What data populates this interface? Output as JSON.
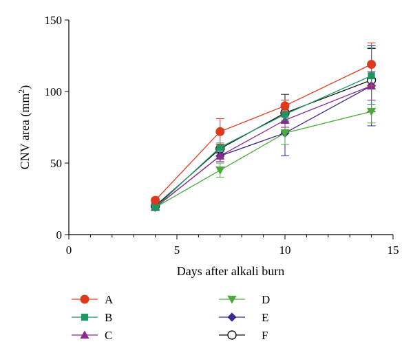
{
  "chart_data": {
    "type": "line",
    "title": "",
    "xlabel": "Days after alkali burn",
    "ylabel_main": "CNV area (mm",
    "ylabel_sup": "2",
    "ylabel_end": ")",
    "xlim": [
      0,
      15
    ],
    "ylim": [
      0,
      150
    ],
    "x_major_ticks": [
      0,
      5,
      10,
      15
    ],
    "x_minor_step": 1,
    "y_ticks": [
      0,
      50,
      100,
      150
    ],
    "x": [
      4,
      7,
      10,
      14
    ],
    "legend_position": "bottom",
    "series": [
      {
        "name": "A",
        "color": "#e03a1e",
        "marker": "circle",
        "values": [
          24,
          72,
          90,
          119
        ],
        "err": [
          1.5,
          9,
          4,
          15
        ]
      },
      {
        "name": "B",
        "color": "#1a9a62",
        "marker": "square",
        "values": [
          19,
          61,
          84,
          111
        ],
        "err": [
          1.5,
          3,
          4,
          20
        ]
      },
      {
        "name": "C",
        "color": "#8b2a8e",
        "marker": "triangle-up",
        "values": [
          19,
          55,
          80,
          104
        ],
        "err": [
          1.5,
          4,
          5,
          10
        ]
      },
      {
        "name": "D",
        "color": "#4caa3c",
        "marker": "triangle-down",
        "values": [
          19,
          45,
          71,
          86
        ],
        "err": [
          1.5,
          5,
          8,
          8
        ]
      },
      {
        "name": "E",
        "color": "#3a2a90",
        "marker": "diamond",
        "values": [
          19,
          55,
          71,
          104
        ],
        "err": [
          1.5,
          4,
          16,
          28
        ]
      },
      {
        "name": "F",
        "color": "#111111",
        "marker": "open-circle",
        "values": [
          20,
          60,
          85,
          108
        ],
        "err": [
          1.5,
          3,
          13,
          22
        ]
      }
    ]
  }
}
